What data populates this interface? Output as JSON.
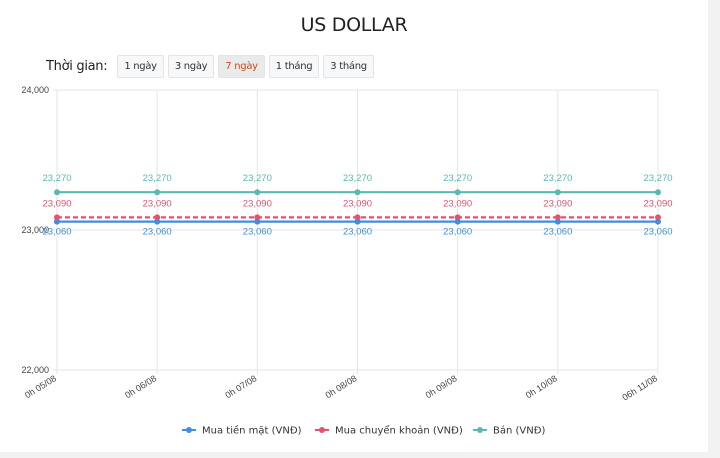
{
  "header": {
    "title": "US DOLLAR"
  },
  "periods": {
    "label": "Thời gian:",
    "options": [
      "1 ngày",
      "3 ngày",
      "7 ngày",
      "1 tháng",
      "3 tháng"
    ],
    "active_index": 2
  },
  "colors": {
    "cash_buy": "#3d8fe0",
    "transfer_buy": "#e8516b",
    "sell": "#5ab8b3",
    "active_period": "#d04a1e"
  },
  "chart_data": {
    "type": "line",
    "title": "US DOLLAR",
    "xlabel": "",
    "ylabel": "",
    "x": [
      "0h 05/08",
      "0h 06/08",
      "0h 07/08",
      "0h 08/08",
      "0h 09/08",
      "0h 10/08",
      "06h 11/08"
    ],
    "yticks": [
      "24,000",
      "23,000",
      "22,000"
    ],
    "ylim": [
      22000,
      24000
    ],
    "grid": true,
    "legend_position": "bottom",
    "series": [
      {
        "name": "Mua tiền mặt (VNĐ)",
        "values": [
          23060,
          23060,
          23060,
          23060,
          23060,
          23060,
          23060
        ],
        "labels": [
          "23,060",
          "23,060",
          "23,060",
          "23,060",
          "23,060",
          "23,060",
          "23,060"
        ],
        "style": "solid"
      },
      {
        "name": "Mua chuyển khoản (VNĐ)",
        "values": [
          23090,
          23090,
          23090,
          23090,
          23090,
          23090,
          23090
        ],
        "labels": [
          "23,090",
          "23,090",
          "23,090",
          "23,090",
          "23,090",
          "23,090",
          "23,090"
        ],
        "style": "dashed"
      },
      {
        "name": "Bán (VNĐ)",
        "values": [
          23270,
          23270,
          23270,
          23270,
          23270,
          23270,
          23270
        ],
        "labels": [
          "23,270",
          "23,270",
          "23,270",
          "23,270",
          "23,270",
          "23,270",
          "23,270"
        ],
        "style": "solid"
      }
    ]
  }
}
